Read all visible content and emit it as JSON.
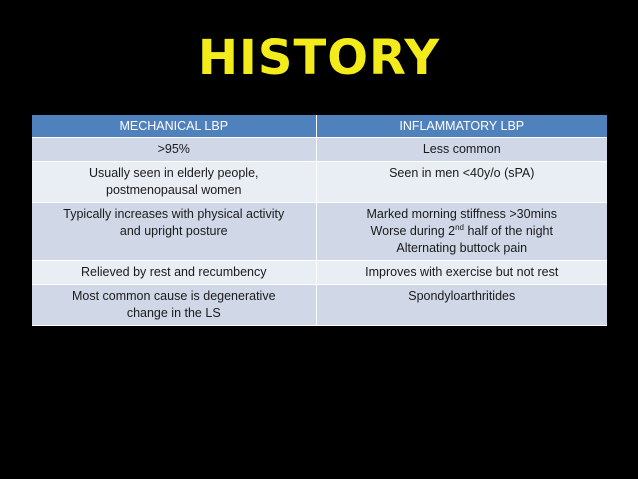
{
  "slide": {
    "title": "HISTORY"
  },
  "table": {
    "headers": [
      "MECHANICAL LBP",
      "INFLAMMATORY LBP"
    ],
    "rows": [
      {
        "mechanical": [
          ">95%"
        ],
        "inflammatory": [
          "Less common"
        ]
      },
      {
        "mechanical": [
          "Usually seen in elderly people,",
          "postmenopausal women"
        ],
        "inflammatory": [
          "Seen in men <40y/o (sPA)"
        ]
      },
      {
        "mechanical": [
          "Typically increases with physical activity",
          "and upright posture"
        ],
        "inflammatory": [
          "Marked morning stiffness >30mins",
          {
            "before": "Worse during 2",
            "sup": "nd",
            "after": " half of the night"
          },
          "Alternating buttock pain"
        ]
      },
      {
        "mechanical": [
          "Relieved by rest and recumbency"
        ],
        "inflammatory": [
          "Improves with exercise but not rest"
        ]
      },
      {
        "mechanical": [
          "Most common cause is degenerative",
          "change in the LS"
        ],
        "inflammatory": [
          "Spondyloarthritides"
        ]
      }
    ]
  },
  "colors": {
    "title": "#f4ec1a",
    "header_bg": "#4f81bd",
    "row_dark": "#d0d8e8",
    "row_light": "#e9edf4",
    "background": "#000000"
  }
}
